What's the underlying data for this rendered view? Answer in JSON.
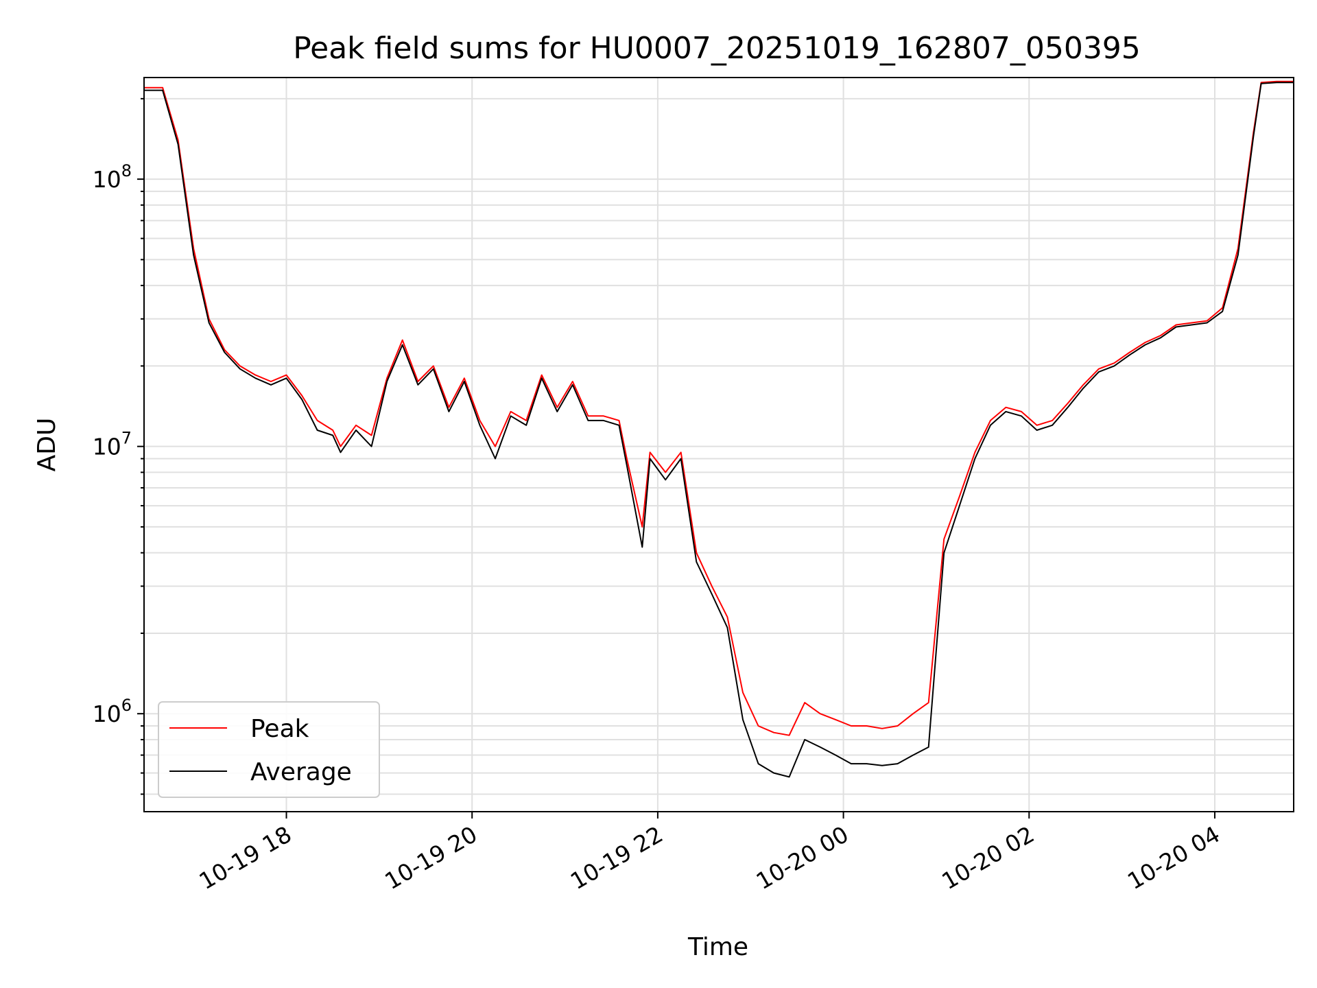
{
  "chart_data": {
    "type": "line",
    "title": "Peak field sums for HU0007_20251019_162807_050395",
    "xlabel": "Time",
    "ylabel": "ADU",
    "y_scale": "log",
    "ylim": [
      430000,
      240000000
    ],
    "xlim": [
      "2025-10-19 16:28",
      "2025-10-20 04:51"
    ],
    "grid": true,
    "legend_position": "bottom-left",
    "x_ticks": [
      {
        "value": "2025-10-19 18:00",
        "label": "10-19 18"
      },
      {
        "value": "2025-10-19 20:00",
        "label": "10-19 20"
      },
      {
        "value": "2025-10-19 22:00",
        "label": "10-19 22"
      },
      {
        "value": "2025-10-20 00:00",
        "label": "10-20 00"
      },
      {
        "value": "2025-10-20 02:00",
        "label": "10-20 02"
      },
      {
        "value": "2025-10-20 04:00",
        "label": "10-20 04"
      }
    ],
    "y_ticks": [
      {
        "value": 1000000,
        "base": "10",
        "exp": "6"
      },
      {
        "value": 10000000,
        "base": "10",
        "exp": "7"
      },
      {
        "value": 100000000,
        "base": "10",
        "exp": "8"
      }
    ],
    "series": [
      {
        "name": "Peak",
        "color": "#ff0000",
        "x": [
          "2025-10-19 16:28",
          "2025-10-19 16:40",
          "2025-10-19 16:50",
          "2025-10-19 17:00",
          "2025-10-19 17:10",
          "2025-10-19 17:20",
          "2025-10-19 17:30",
          "2025-10-19 17:40",
          "2025-10-19 17:50",
          "2025-10-19 18:00",
          "2025-10-19 18:10",
          "2025-10-19 18:20",
          "2025-10-19 18:30",
          "2025-10-19 18:35",
          "2025-10-19 18:45",
          "2025-10-19 18:55",
          "2025-10-19 19:05",
          "2025-10-19 19:15",
          "2025-10-19 19:25",
          "2025-10-19 19:35",
          "2025-10-19 19:45",
          "2025-10-19 19:55",
          "2025-10-19 20:05",
          "2025-10-19 20:15",
          "2025-10-19 20:25",
          "2025-10-19 20:35",
          "2025-10-19 20:45",
          "2025-10-19 20:55",
          "2025-10-19 21:05",
          "2025-10-19 21:15",
          "2025-10-19 21:25",
          "2025-10-19 21:35",
          "2025-10-19 21:40",
          "2025-10-19 21:50",
          "2025-10-19 21:55",
          "2025-10-19 22:05",
          "2025-10-19 22:15",
          "2025-10-19 22:25",
          "2025-10-19 22:35",
          "2025-10-19 22:45",
          "2025-10-19 22:55",
          "2025-10-19 23:05",
          "2025-10-19 23:15",
          "2025-10-19 23:25",
          "2025-10-19 23:35",
          "2025-10-19 23:45",
          "2025-10-19 23:55",
          "2025-10-20 00:05",
          "2025-10-20 00:15",
          "2025-10-20 00:25",
          "2025-10-20 00:35",
          "2025-10-20 00:45",
          "2025-10-20 00:55",
          "2025-10-20 01:05",
          "2025-10-20 01:15",
          "2025-10-20 01:25",
          "2025-10-20 01:35",
          "2025-10-20 01:45",
          "2025-10-20 01:55",
          "2025-10-20 02:05",
          "2025-10-20 02:15",
          "2025-10-20 02:25",
          "2025-10-20 02:35",
          "2025-10-20 02:45",
          "2025-10-20 02:55",
          "2025-10-20 03:05",
          "2025-10-20 03:15",
          "2025-10-20 03:25",
          "2025-10-20 03:35",
          "2025-10-20 03:45",
          "2025-10-20 03:55",
          "2025-10-20 04:05",
          "2025-10-20 04:15",
          "2025-10-20 04:25",
          "2025-10-20 04:30",
          "2025-10-20 04:40",
          "2025-10-20 04:51"
        ],
        "y": [
          220000000,
          220000000,
          140000000,
          55000000,
          30000000,
          23000000,
          20000000,
          18500000,
          17500000,
          18500000,
          15500000,
          12500000,
          11500000,
          10000000,
          12000000,
          11000000,
          18000000,
          25000000,
          17500000,
          20000000,
          14000000,
          18000000,
          12500000,
          10000000,
          13500000,
          12500000,
          18500000,
          14000000,
          17500000,
          13000000,
          13000000,
          12500000,
          9000000,
          5000000,
          9500000,
          8000000,
          9500000,
          4000000,
          3000000,
          2300000,
          1200000,
          900000,
          850000,
          830000,
          1100000,
          1000000,
          950000,
          900000,
          900000,
          880000,
          900000,
          1000000,
          1100000,
          4500000,
          6500000,
          9500000,
          12500000,
          14000000,
          13500000,
          12000000,
          12500000,
          14500000,
          17000000,
          19500000,
          20500000,
          22500000,
          24500000,
          26000000,
          28500000,
          29000000,
          29500000,
          33000000,
          55000000,
          150000000,
          230000000,
          232000000,
          232000000
        ]
      },
      {
        "name": "Average",
        "color": "#000000",
        "x": [
          "2025-10-19 16:28",
          "2025-10-19 16:40",
          "2025-10-19 16:50",
          "2025-10-19 17:00",
          "2025-10-19 17:10",
          "2025-10-19 17:20",
          "2025-10-19 17:30",
          "2025-10-19 17:40",
          "2025-10-19 17:50",
          "2025-10-19 18:00",
          "2025-10-19 18:10",
          "2025-10-19 18:20",
          "2025-10-19 18:30",
          "2025-10-19 18:35",
          "2025-10-19 18:45",
          "2025-10-19 18:55",
          "2025-10-19 19:05",
          "2025-10-19 19:15",
          "2025-10-19 19:25",
          "2025-10-19 19:35",
          "2025-10-19 19:45",
          "2025-10-19 19:55",
          "2025-10-19 20:05",
          "2025-10-19 20:15",
          "2025-10-19 20:25",
          "2025-10-19 20:35",
          "2025-10-19 20:45",
          "2025-10-19 20:55",
          "2025-10-19 21:05",
          "2025-10-19 21:15",
          "2025-10-19 21:25",
          "2025-10-19 21:35",
          "2025-10-19 21:40",
          "2025-10-19 21:50",
          "2025-10-19 21:55",
          "2025-10-19 22:05",
          "2025-10-19 22:15",
          "2025-10-19 22:25",
          "2025-10-19 22:35",
          "2025-10-19 22:45",
          "2025-10-19 22:55",
          "2025-10-19 23:05",
          "2025-10-19 23:15",
          "2025-10-19 23:25",
          "2025-10-19 23:35",
          "2025-10-19 23:45",
          "2025-10-19 23:55",
          "2025-10-20 00:05",
          "2025-10-20 00:15",
          "2025-10-20 00:25",
          "2025-10-20 00:35",
          "2025-10-20 00:45",
          "2025-10-20 00:55",
          "2025-10-20 01:05",
          "2025-10-20 01:15",
          "2025-10-20 01:25",
          "2025-10-20 01:35",
          "2025-10-20 01:45",
          "2025-10-20 01:55",
          "2025-10-20 02:05",
          "2025-10-20 02:15",
          "2025-10-20 02:25",
          "2025-10-20 02:35",
          "2025-10-20 02:45",
          "2025-10-20 02:55",
          "2025-10-20 03:05",
          "2025-10-20 03:15",
          "2025-10-20 03:25",
          "2025-10-20 03:35",
          "2025-10-20 03:45",
          "2025-10-20 03:55",
          "2025-10-20 04:05",
          "2025-10-20 04:15",
          "2025-10-20 04:25",
          "2025-10-20 04:30",
          "2025-10-20 04:40",
          "2025-10-20 04:51"
        ],
        "y": [
          215000000,
          215000000,
          135000000,
          52000000,
          29000000,
          22500000,
          19500000,
          18000000,
          17000000,
          18000000,
          15000000,
          11500000,
          11000000,
          9500000,
          11500000,
          10000000,
          17500000,
          24000000,
          17000000,
          19500000,
          13500000,
          17500000,
          12000000,
          9000000,
          13000000,
          12000000,
          18000000,
          13500000,
          17000000,
          12500000,
          12500000,
          12000000,
          8500000,
          4200000,
          9000000,
          7500000,
          9000000,
          3700000,
          2800000,
          2100000,
          950000,
          650000,
          600000,
          580000,
          800000,
          750000,
          700000,
          650000,
          650000,
          640000,
          650000,
          700000,
          750000,
          4000000,
          6000000,
          9000000,
          12000000,
          13500000,
          13000000,
          11500000,
          12000000,
          14000000,
          16500000,
          19000000,
          20000000,
          22000000,
          24000000,
          25500000,
          28000000,
          28500000,
          29000000,
          32000000,
          52000000,
          145000000,
          228000000,
          230000000,
          230000000
        ]
      }
    ]
  }
}
